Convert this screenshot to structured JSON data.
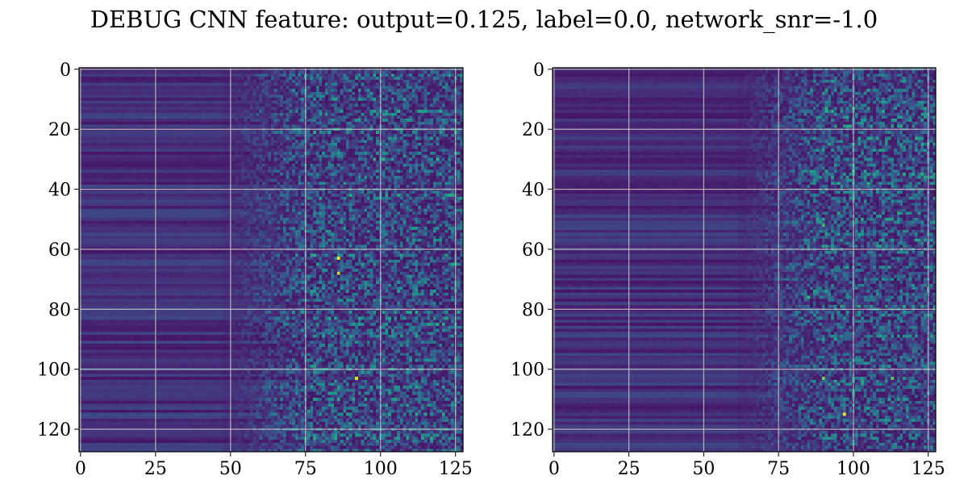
{
  "figure": {
    "title": "DEBUG CNN feature: output=0.125, label=0.0, network_snr=-1.0"
  },
  "chart_data": [
    {
      "type": "heatmap",
      "title": "",
      "xlabel": "",
      "ylabel": "",
      "shape": [
        128,
        128
      ],
      "xlim": [
        -0.5,
        127.5
      ],
      "ylim": [
        127.5,
        -0.5
      ],
      "xticks": [
        0,
        25,
        50,
        75,
        100,
        125
      ],
      "yticks": [
        0,
        20,
        40,
        60,
        80,
        100,
        120
      ],
      "grid": true,
      "colormap": "viridis",
      "value_range": [
        0,
        1
      ],
      "structure": "horizontal row bands; smooth low values for columns 0-48, rising noisy values for columns 50-127",
      "hotspots": [
        {
          "row": 63,
          "col": 86,
          "value": 1.0
        },
        {
          "row": 68,
          "col": 86,
          "value": 0.9
        },
        {
          "row": 103,
          "col": 92,
          "value": 0.95
        },
        {
          "row": 43,
          "col": 80,
          "value": 0.6
        }
      ]
    },
    {
      "type": "heatmap",
      "title": "",
      "xlabel": "",
      "ylabel": "",
      "shape": [
        128,
        128
      ],
      "xlim": [
        -0.5,
        127.5
      ],
      "ylim": [
        127.5,
        -0.5
      ],
      "xticks": [
        0,
        25,
        50,
        75,
        100,
        125
      ],
      "yticks": [
        0,
        20,
        40,
        60,
        80,
        100,
        120
      ],
      "grid": true,
      "colormap": "viridis",
      "value_range": [
        0,
        1
      ],
      "structure": "horizontal row bands; smooth low values for columns 0-60, rising noisy values for columns 70-127",
      "hotspots": [
        {
          "row": 115,
          "col": 97,
          "value": 1.0
        },
        {
          "row": 103,
          "col": 90,
          "value": 0.8
        },
        {
          "row": 103,
          "col": 113,
          "value": 0.75
        },
        {
          "row": 52,
          "col": 90,
          "value": 0.7
        },
        {
          "row": 76,
          "col": 85,
          "value": 0.65
        }
      ]
    }
  ]
}
